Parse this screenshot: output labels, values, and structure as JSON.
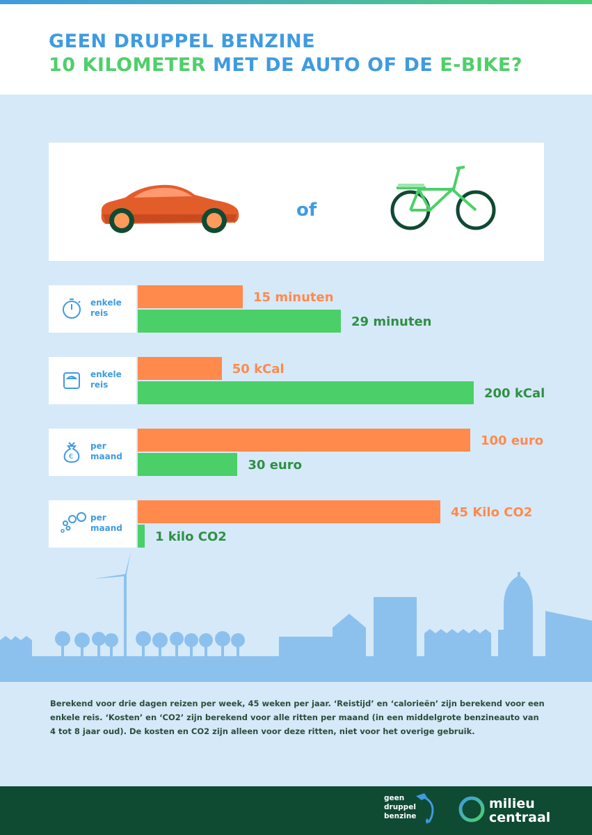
{
  "header": {
    "title_line1": "GEEN DRUPPEL BENZINE",
    "title_line2_a": "10 KILOMETER",
    "title_line2_b": " MET DE AUTO OF DE ",
    "title_line2_c": "E-BIKE?"
  },
  "comparison": {
    "or_label": "of"
  },
  "colors": {
    "car": "#ff8a4c",
    "bike": "#4bcf68",
    "accent_blue": "#3f9be0",
    "footer": "#0f4a33",
    "background": "#d6e9f8"
  },
  "chart_data": {
    "type": "bar",
    "orientation": "horizontal",
    "series": [
      {
        "vehicle": "car",
        "values": [
          15,
          50,
          100,
          45
        ]
      },
      {
        "vehicle": "e-bike",
        "values": [
          29,
          200,
          30,
          1
        ]
      }
    ],
    "metrics": [
      {
        "icon": "stopwatch-icon",
        "label_line1": "enkele",
        "label_line2": "reis",
        "car_label": "15 minuten",
        "bike_label": "29 minuten",
        "max": 29
      },
      {
        "icon": "scale-icon",
        "label_line1": "enkele",
        "label_line2": "reis",
        "car_label": "50 kCal",
        "bike_label": "200 kCal",
        "max": 200
      },
      {
        "icon": "money-bag-icon",
        "label_line1": "per",
        "label_line2": "maand",
        "car_label": "100 euro",
        "bike_label": "30 euro",
        "max": 100
      },
      {
        "icon": "bubbles-icon",
        "label_line1": "per",
        "label_line2": "maand",
        "car_label": "45 Kilo CO2",
        "bike_label": "1 kilo CO2",
        "max": 45
      }
    ]
  },
  "footnote": "Berekend voor drie dagen reizen per week, 45 weken per jaar. ‘Reistijd’ en ‘calorieën’ zijn berekend voor een enkele reis. ‘Kosten’ en ‘CO2’ zijn berekend voor alle ritten per maand (in een middelgrote benzineauto van 4 tot 8 jaar oud). De kosten en CO2 zijn alleen voor deze ritten, niet voor het overige gebruik.",
  "footer": {
    "gdb_line1": "geen",
    "gdb_line2": "druppel",
    "gdb_line3": "benzine",
    "mc_line1": "milieu",
    "mc_line2": "centraal"
  }
}
